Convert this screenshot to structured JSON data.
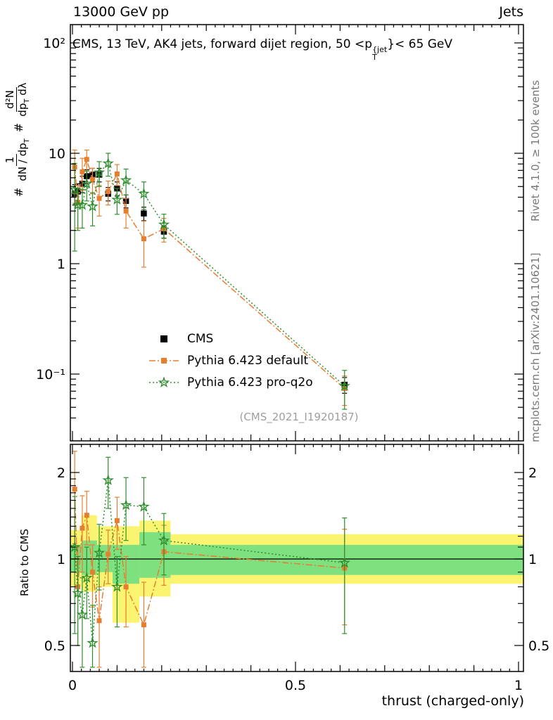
{
  "header": {
    "left": "13000 GeV pp",
    "right": "Jets"
  },
  "main": {
    "title": {
      "pre": "CMS, 13 TeV, AK4 jets, forward dijet region, 50 <p",
      "sup": "{jet",
      "sub": "T",
      "post": "}< 65 GeV"
    },
    "ylabel": {
      "hash1": "#",
      "hash2": "#",
      "frac1": {
        "num": "1",
        "den_pre": "dN / dp",
        "den_sub": "T"
      },
      "frac2": {
        "num": "d²N",
        "den_pre": "dp",
        "den_sub": "T",
        "den_post": " dλ"
      }
    },
    "watermark": "(CMS_2021_I1920187)"
  },
  "ratio": {
    "ylabel": "Ratio to CMS"
  },
  "notes": {
    "rivet": "Rivet 4.1.0, ≥ 100k events",
    "mcplots": "mcplots.cern.ch [arXiv:2401.10621]"
  },
  "axes": {
    "x": {
      "label": "thrust (charged-only)",
      "min": 0,
      "max": 1,
      "major": [
        {
          "v": 0,
          "label": "0"
        },
        {
          "v": 0.5,
          "label": "0.5"
        },
        {
          "v": 1,
          "label": "1"
        }
      ]
    },
    "y_main": {
      "scale": "log",
      "major": [
        {
          "v": 100,
          "label": "10²"
        },
        {
          "v": 10,
          "label": "10"
        },
        {
          "v": 1,
          "label": "1"
        },
        {
          "v": 0.1,
          "label": "10⁻¹"
        }
      ]
    },
    "y_ratio": {
      "scale": "log",
      "major": [
        {
          "v": 2,
          "label": "2"
        },
        {
          "v": 1,
          "label": "1"
        },
        {
          "v": 0.5,
          "label": "0.5"
        }
      ],
      "minor": [
        0.6,
        0.7,
        0.8,
        0.9,
        1.1,
        1.2,
        1.3,
        1.4,
        1.5,
        1.6,
        1.7,
        1.8,
        1.9
      ]
    }
  },
  "legend": {
    "items": [
      {
        "label": "CMS",
        "type": "data"
      },
      {
        "label": "Pythia 6.423 default",
        "type": "mc_default"
      },
      {
        "label": "Pythia 6.423 pro-q2o",
        "type": "mc_proq2o"
      }
    ]
  },
  "colors": {
    "cms": "#000000",
    "default": "#e67e30",
    "proq2o": "#2f8f2f",
    "band_yellow": "#fbf470",
    "band_green": "#7fe07f",
    "frame": "#000000",
    "gray_text": "#9e9e9e"
  },
  "chart_data": [
    {
      "type": "scatter",
      "title": "CMS, 13 TeV, AK4 jets, forward dijet region, 50 < pT{jet} < 65 GeV",
      "xlabel": "thrust (charged-only)",
      "ylabel": "1/(dN/dpT) d2N/(dpT dlambda)",
      "xlim": [
        0,
        1
      ],
      "ylim_log": [
        0.03,
        145
      ],
      "grid": false,
      "legend_position": "center-left",
      "x": [
        0.005,
        0.012,
        0.022,
        0.032,
        0.045,
        0.06,
        0.08,
        0.1,
        0.12,
        0.16,
        0.205,
        0.61
      ],
      "series": [
        {
          "name": "CMS",
          "color": "#000000",
          "marker": "square",
          "marker_size": 8.5,
          "line": "none",
          "y": [
            4.3,
            4.5,
            5.3,
            6.2,
            6.4,
            6.4,
            4.3,
            4.8,
            3.7,
            2.85,
            1.95,
            0.08
          ],
          "yerr": [
            0.9,
            0.8,
            0.9,
            0.9,
            0.9,
            0.9,
            0.6,
            0.7,
            0.5,
            0.4,
            0.25,
            0.013
          ]
        },
        {
          "name": "Pythia 6.423 default",
          "color": "#e67e30",
          "marker": "square",
          "marker_size": 7,
          "line": "dashdot",
          "y": [
            7.5,
            3.6,
            6.8,
            8.8,
            5.8,
            3.9,
            4.5,
            6.5,
            3.0,
            1.68,
            2.07,
            0.074
          ],
          "yerr": [
            3.2,
            1.5,
            2.2,
            1.9,
            1.5,
            1.2,
            1.1,
            1.4,
            0.9,
            0.75,
            0.5,
            0.022
          ]
        },
        {
          "name": "Pythia 6.423 pro-q2o",
          "color": "#2f8f2f",
          "marker": "star",
          "marker_size": 6.5,
          "line": "dot",
          "y": [
            4.7,
            3.4,
            3.4,
            5.3,
            3.3,
            6.7,
            8.1,
            3.8,
            5.7,
            4.3,
            2.26,
            0.078
          ],
          "yerr": [
            3.4,
            1.4,
            1.3,
            1.6,
            1.1,
            1.7,
            1.9,
            1.0,
            1.5,
            1.2,
            0.55,
            0.03
          ]
        }
      ]
    },
    {
      "type": "scatter",
      "title": "Ratio to CMS",
      "xlim": [
        0,
        1
      ],
      "ylim_log": [
        0.41,
        2.5
      ],
      "x": [
        0.005,
        0.012,
        0.022,
        0.032,
        0.045,
        0.06,
        0.08,
        0.1,
        0.12,
        0.16,
        0.205,
        0.61
      ],
      "series": [
        {
          "name": "Pythia 6.423 default",
          "color": "#e67e30",
          "marker": "square",
          "marker_size": 7,
          "line": "dashdot",
          "y": [
            1.75,
            0.8,
            1.28,
            1.42,
            0.9,
            0.61,
            1.04,
            1.36,
            0.8,
            0.59,
            1.06,
            0.93
          ],
          "yerr": [
            0.62,
            0.3,
            0.38,
            0.3,
            0.22,
            0.19,
            0.22,
            0.28,
            0.22,
            0.24,
            0.25,
            0.34
          ]
        },
        {
          "name": "Pythia 6.423 pro-q2o",
          "color": "#2f8f2f",
          "marker": "star",
          "marker_size": 6.5,
          "line": "dot",
          "y": [
            1.1,
            0.76,
            0.64,
            0.86,
            0.51,
            1.05,
            1.88,
            0.8,
            1.54,
            1.52,
            1.16,
            0.97
          ],
          "yerr": [
            0.55,
            0.26,
            0.22,
            0.24,
            0.18,
            0.27,
            0.38,
            0.22,
            0.38,
            0.4,
            0.28,
            0.42
          ]
        }
      ],
      "bands": {
        "yellow": [
          {
            "x0": 0.0,
            "x1": 0.02,
            "lo": 0.8,
            "hi": 1.26
          },
          {
            "x0": 0.02,
            "x1": 0.055,
            "lo": 0.77,
            "hi": 1.42
          },
          {
            "x0": 0.055,
            "x1": 0.09,
            "lo": 0.8,
            "hi": 1.3
          },
          {
            "x0": 0.09,
            "x1": 0.15,
            "lo": 0.6,
            "hi": 1.3
          },
          {
            "x0": 0.15,
            "x1": 0.22,
            "lo": 0.74,
            "hi": 1.36
          },
          {
            "x0": 0.22,
            "x1": 1.0,
            "lo": 0.82,
            "hi": 1.22
          }
        ],
        "green": [
          {
            "x0": 0.0,
            "x1": 0.02,
            "lo": 0.9,
            "hi": 1.12
          },
          {
            "x0": 0.02,
            "x1": 0.055,
            "lo": 0.88,
            "hi": 1.16
          },
          {
            "x0": 0.055,
            "x1": 0.09,
            "lo": 0.9,
            "hi": 1.12
          },
          {
            "x0": 0.09,
            "x1": 0.15,
            "lo": 0.82,
            "hi": 1.12
          },
          {
            "x0": 0.15,
            "x1": 0.22,
            "lo": 0.86,
            "hi": 1.24
          },
          {
            "x0": 0.22,
            "x1": 1.0,
            "lo": 0.88,
            "hi": 1.12
          }
        ]
      }
    }
  ]
}
